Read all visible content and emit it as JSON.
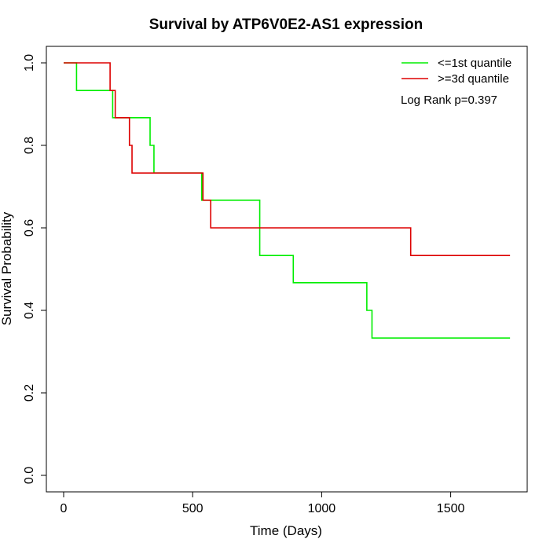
{
  "chart_data": {
    "type": "line",
    "title": "Survival by ATP6V0E2-AS1 expression",
    "xlabel": "Time (Days)",
    "ylabel": "Survival Probability",
    "xlim": [
      0,
      1780
    ],
    "ylim": [
      0,
      1.0
    ],
    "x_ticks": [
      0,
      500,
      1000,
      1500
    ],
    "y_ticks": [
      0.0,
      0.2,
      0.4,
      0.6,
      0.8,
      1.0
    ],
    "x_tick_labels": [
      "0",
      "500",
      "1000",
      "1500"
    ],
    "y_tick_labels": [
      "0.0",
      "0.2",
      "0.4",
      "0.6",
      "0.8",
      "1.0"
    ],
    "legend_position": "top-right",
    "annotation": "Log Rank p=0.397",
    "series": [
      {
        "name": "<=1st quantile",
        "color": "#00ee00",
        "step": true,
        "x": [
          0,
          50,
          190,
          335,
          350,
          535,
          760,
          890,
          1175,
          1195,
          1730
        ],
        "y": [
          1.0,
          0.933,
          0.867,
          0.8,
          0.733,
          0.667,
          0.533,
          0.467,
          0.4,
          0.333,
          0.333
        ]
      },
      {
        "name": ">=3d quantile",
        "color": "#dd0000",
        "step": true,
        "x": [
          0,
          180,
          200,
          255,
          265,
          540,
          570,
          1345,
          1730
        ],
        "y": [
          1.0,
          0.933,
          0.867,
          0.8,
          0.733,
          0.667,
          0.6,
          0.533,
          0.533
        ]
      }
    ]
  }
}
